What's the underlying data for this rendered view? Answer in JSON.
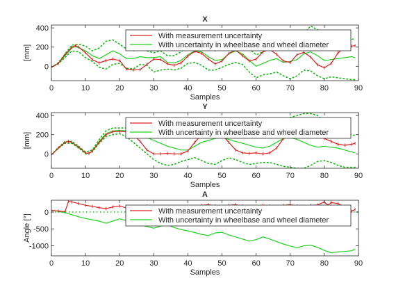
{
  "chart_data": [
    {
      "type": "line",
      "title": "X",
      "xlabel": "Samples",
      "ylabel": "[mm]",
      "xlim": [
        0,
        90
      ],
      "ylim": [
        -150,
        430
      ],
      "xticks": [
        0,
        10,
        20,
        30,
        40,
        50,
        60,
        70,
        80,
        90
      ],
      "yticks": [
        0,
        200,
        400
      ],
      "grid": false,
      "legend_position": "top-right",
      "legend": [
        "With measurement uncertainty",
        "With uncertainty in wheelbase and wheel diameter"
      ],
      "colors": {
        "red": "#d62020",
        "green": "#1fd01f",
        "dotted": "#10b810"
      },
      "red_series": {
        "x": [
          0,
          2,
          4,
          6,
          7,
          8,
          10,
          12,
          14,
          16,
          18,
          20,
          22,
          24,
          26,
          28,
          30,
          32,
          34,
          36,
          38,
          40,
          42,
          44,
          46,
          48,
          50,
          52,
          54,
          56,
          58,
          60,
          62,
          64,
          66,
          68,
          70,
          72,
          74,
          76,
          78,
          80,
          82,
          84,
          86,
          88,
          89
        ],
        "y": [
          -10,
          30,
          120,
          200,
          215,
          200,
          140,
          70,
          35,
          60,
          75,
          60,
          -30,
          -40,
          -35,
          20,
          75,
          70,
          25,
          10,
          35,
          105,
          155,
          135,
          75,
          25,
          55,
          135,
          170,
          110,
          55,
          75,
          150,
          175,
          125,
          55,
          40,
          120,
          145,
          95,
          15,
          -15,
          30,
          140,
          195,
          210,
          215
        ]
      },
      "green_series": {
        "x": [
          0,
          2,
          4,
          6,
          7,
          8,
          10,
          12,
          14,
          16,
          18,
          20,
          22,
          24,
          26,
          28,
          30,
          32,
          34,
          36,
          38,
          40,
          42,
          44,
          46,
          48,
          50,
          52,
          54,
          56,
          58,
          60,
          62,
          64,
          66,
          68,
          70,
          72,
          74,
          76,
          78,
          80,
          82,
          84,
          86,
          88,
          89
        ],
        "y": [
          -10,
          30,
          110,
          190,
          205,
          195,
          160,
          110,
          80,
          120,
          160,
          130,
          80,
          80,
          100,
          90,
          90,
          100,
          40,
          35,
          60,
          120,
          160,
          150,
          100,
          60,
          70,
          130,
          160,
          130,
          60,
          0,
          30,
          60,
          80,
          40,
          50,
          70,
          130,
          150,
          110,
          60,
          70,
          80,
          90,
          100,
          90
        ]
      },
      "upper_bound": {
        "x": [
          0,
          2,
          4,
          6,
          8,
          10,
          12,
          14,
          16,
          18,
          20,
          22,
          24,
          26,
          28,
          30,
          32,
          34,
          36,
          38,
          40,
          42,
          44,
          46,
          48,
          50,
          52,
          54,
          56,
          58,
          60,
          62,
          64,
          66,
          68,
          70,
          72,
          74,
          76,
          78,
          80,
          82,
          84,
          86,
          88,
          89
        ],
        "y": [
          -10,
          35,
          130,
          220,
          230,
          210,
          160,
          190,
          260,
          275,
          230,
          180,
          160,
          180,
          160,
          140,
          160,
          110,
          110,
          150,
          200,
          290,
          280,
          230,
          160,
          180,
          240,
          280,
          250,
          180,
          120,
          150,
          200,
          210,
          180,
          200,
          260,
          340,
          420,
          380,
          270,
          240,
          260,
          260,
          280,
          290
        ]
      },
      "lower_bound": {
        "x": [
          0,
          2,
          4,
          6,
          8,
          10,
          12,
          14,
          16,
          18,
          20,
          22,
          24,
          26,
          28,
          30,
          32,
          34,
          36,
          38,
          40,
          42,
          44,
          46,
          48,
          50,
          52,
          54,
          56,
          58,
          60,
          62,
          64,
          66,
          68,
          70,
          72,
          74,
          76,
          78,
          80,
          82,
          84,
          86,
          88,
          89
        ],
        "y": [
          -10,
          25,
          90,
          160,
          150,
          90,
          50,
          -10,
          -30,
          20,
          30,
          -20,
          -30,
          20,
          10,
          -60,
          -40,
          -30,
          -40,
          -20,
          30,
          40,
          10,
          -40,
          -40,
          -10,
          20,
          40,
          20,
          -60,
          -120,
          -90,
          -80,
          -60,
          -100,
          -130,
          -100,
          -40,
          -50,
          -100,
          -130,
          -110,
          -120,
          -130,
          -140,
          -140
        ]
      }
    },
    {
      "type": "line",
      "title": "Y",
      "xlabel": "Samples",
      "ylabel": "[mm]",
      "xlim": [
        0,
        90
      ],
      "ylim": [
        -150,
        430
      ],
      "xticks": [
        0,
        10,
        20,
        30,
        40,
        50,
        60,
        70,
        80,
        90
      ],
      "yticks": [
        0,
        200,
        400
      ],
      "grid": false,
      "legend_position": "top-right",
      "legend": [
        "With measurement uncertainty",
        "With uncertainty in wheelbase and wheel diameter"
      ],
      "red_series": {
        "x": [
          0,
          2,
          4,
          5,
          6,
          8,
          10,
          11,
          12,
          14,
          16,
          18,
          20,
          22,
          24,
          26,
          28,
          30,
          32,
          34,
          36,
          38,
          40,
          42,
          44,
          46,
          48,
          50,
          52,
          54,
          56,
          58,
          60,
          62,
          64,
          66,
          68,
          70,
          72,
          74,
          76,
          78,
          80,
          82,
          84,
          86,
          88,
          89
        ],
        "y": [
          -10,
          60,
          120,
          130,
          120,
          70,
          10,
          5,
          30,
          120,
          200,
          230,
          235,
          230,
          200,
          130,
          40,
          0,
          0,
          5,
          0,
          0,
          30,
          120,
          200,
          235,
          240,
          200,
          120,
          40,
          10,
          5,
          10,
          0,
          10,
          60,
          160,
          230,
          240,
          220,
          190,
          180,
          160,
          130,
          100,
          90,
          100,
          110
        ]
      },
      "green_series": {
        "x": [
          0,
          2,
          4,
          5,
          6,
          8,
          10,
          11,
          12,
          14,
          16,
          18,
          20,
          22,
          24,
          26,
          28,
          30,
          32,
          34,
          36,
          38,
          40,
          42,
          44,
          46,
          48,
          50,
          52,
          54,
          56,
          58,
          60,
          62,
          64,
          66,
          68,
          70,
          72,
          74,
          76,
          78,
          80,
          82,
          84,
          86,
          88,
          89
        ],
        "y": [
          -10,
          60,
          120,
          130,
          120,
          70,
          10,
          5,
          30,
          130,
          210,
          240,
          245,
          240,
          220,
          200,
          170,
          140,
          110,
          80,
          60,
          40,
          40,
          80,
          120,
          140,
          160,
          170,
          150,
          130,
          110,
          90,
          70,
          60,
          80,
          120,
          160,
          170,
          150,
          120,
          90,
          70,
          80,
          70,
          60,
          40,
          20,
          10
        ]
      },
      "upper_bound": {
        "x": [
          0,
          2,
          4,
          6,
          8,
          10,
          12,
          14,
          16,
          18,
          20,
          22,
          24,
          26,
          28,
          30,
          32,
          34,
          36,
          38,
          40,
          42,
          44,
          46,
          48,
          50,
          52,
          54,
          56,
          58,
          60,
          62,
          64,
          66,
          68,
          70,
          72,
          74,
          76,
          78,
          80,
          82,
          84,
          86,
          88,
          89
        ],
        "y": [
          -10,
          65,
          130,
          130,
          80,
          20,
          40,
          150,
          240,
          270,
          270,
          270,
          280,
          300,
          320,
          330,
          300,
          260,
          240,
          220,
          200,
          220,
          260,
          300,
          330,
          340,
          330,
          300,
          280,
          270,
          260,
          280,
          320,
          340,
          360,
          380,
          400,
          420,
          420,
          400,
          340,
          300,
          260,
          230,
          200,
          190
        ]
      },
      "lower_bound": {
        "x": [
          0,
          2,
          4,
          6,
          8,
          10,
          12,
          14,
          16,
          18,
          20,
          22,
          24,
          26,
          28,
          30,
          32,
          34,
          36,
          38,
          40,
          42,
          44,
          46,
          48,
          50,
          52,
          54,
          56,
          58,
          60,
          62,
          64,
          66,
          68,
          70,
          72,
          74,
          76,
          78,
          80,
          82,
          84,
          86,
          88,
          89
        ],
        "y": [
          -10,
          55,
          110,
          110,
          60,
          0,
          20,
          110,
          180,
          200,
          210,
          180,
          120,
          60,
          0,
          -60,
          -100,
          -120,
          -110,
          -80,
          -60,
          -40,
          -70,
          -100,
          -110,
          -70,
          -40,
          -60,
          -90,
          -110,
          -100,
          -90,
          -90,
          -110,
          -130,
          -140,
          -150,
          -150,
          -120,
          -80,
          -70,
          -90,
          -120,
          -140,
          -140,
          -140
        ]
      }
    },
    {
      "type": "line",
      "title": "A",
      "xlabel": "Samples",
      "ylabel": "Angle [°]",
      "xlim": [
        0,
        90
      ],
      "ylim": [
        -1300,
        350
      ],
      "xticks": [
        0,
        10,
        20,
        30,
        40,
        50,
        60,
        70,
        80,
        90
      ],
      "yticks": [
        0,
        -500,
        -1000
      ],
      "ytick_labels": [
        "0",
        "-500",
        "-1000"
      ],
      "grid": false,
      "legend_position": "top-right",
      "legend": [
        "With measurement uncertainty",
        "With uncertainty in wheelbase and wheel diameter"
      ],
      "red_series": {
        "x": [
          0,
          2,
          4,
          5,
          6,
          8,
          10,
          12,
          14,
          16,
          18,
          20,
          22,
          24,
          26,
          28,
          30,
          32,
          34,
          36,
          38,
          40,
          42,
          44,
          46,
          48,
          50,
          52,
          54,
          56,
          58,
          60,
          62,
          64,
          66,
          68,
          70,
          72,
          74,
          76,
          78,
          80,
          81,
          82,
          84,
          86,
          88,
          89
        ],
        "y": [
          50,
          30,
          10,
          320,
          300,
          250,
          200,
          170,
          130,
          100,
          150,
          180,
          120,
          100,
          150,
          180,
          140,
          100,
          130,
          170,
          150,
          120,
          160,
          200,
          220,
          180,
          150,
          200,
          220,
          180,
          150,
          170,
          200,
          180,
          160,
          200,
          220,
          180,
          160,
          200,
          210,
          300,
          200,
          280,
          250,
          150,
          20,
          80
        ]
      },
      "green_series": {
        "x": [
          0,
          2,
          4,
          6,
          8,
          10,
          12,
          14,
          16,
          18,
          20,
          22,
          24,
          26,
          28,
          30,
          32,
          34,
          36,
          38,
          40,
          42,
          44,
          46,
          48,
          50,
          52,
          54,
          56,
          58,
          60,
          62,
          64,
          66,
          68,
          70,
          72,
          74,
          76,
          78,
          80,
          82,
          84,
          86,
          88,
          89
        ],
        "y": [
          60,
          20,
          -20,
          -80,
          -140,
          -190,
          -230,
          -270,
          -330,
          -270,
          -200,
          -260,
          -310,
          -380,
          -430,
          -480,
          -420,
          -380,
          -460,
          -520,
          -560,
          -610,
          -660,
          -700,
          -620,
          -600,
          -680,
          -740,
          -800,
          -860,
          -820,
          -740,
          -800,
          -880,
          -950,
          -1010,
          -1060,
          -1000,
          -980,
          -1050,
          -1140,
          -1210,
          -1180,
          -1170,
          -1150,
          -1100
        ]
      },
      "dotted_line": {
        "x": [
          0,
          90
        ],
        "y": [
          0,
          0
        ]
      }
    }
  ]
}
